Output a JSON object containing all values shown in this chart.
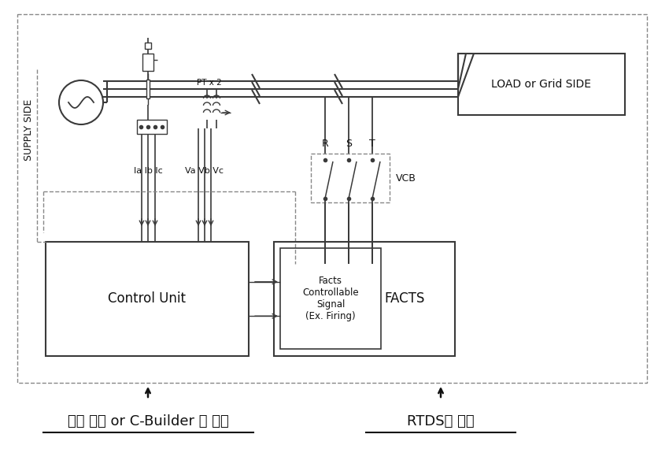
{
  "bg": "#ffffff",
  "lc": "#3a3a3a",
  "dc": "#888888",
  "tc": "#111111",
  "supply_label": "SUPPLY SIDE",
  "load_label": "LOAD or Grid SIDE",
  "vcb_label": "VCB",
  "facts_label": "FACTS",
  "facts_inner": "Facts\nControllable\nSignal\n(Ex. Firing)",
  "cu_label": "Control Unit",
  "ia_label": "Ia Ib Ic",
  "va_label": "Va Vb Vc",
  "r_label": "R",
  "s_label": "S",
  "t_label": "T",
  "pt_label": "PT x 2",
  "bottom_left": "실제 제작 or C-Builder 로 구현",
  "bottom_right": "RTDS로 구현"
}
